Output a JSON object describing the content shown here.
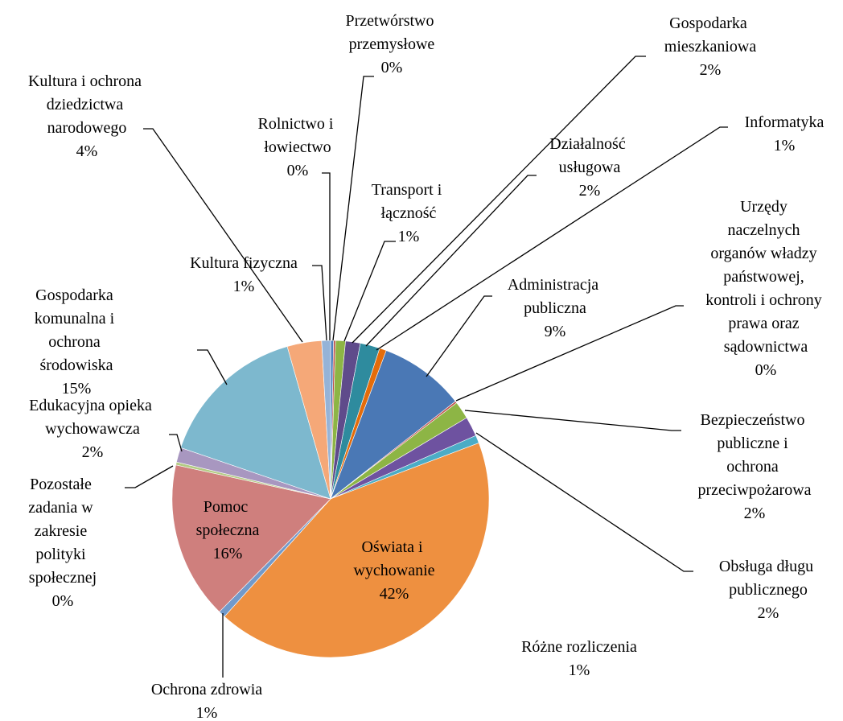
{
  "chart_data": {
    "type": "pie",
    "categories": [
      "Rolnictwo i łowiectwo",
      "Przetwórstwo przemysłowe",
      "Transport i łączność",
      "Gospodarka mieszkaniowa",
      "Działalność usługowa",
      "Informatyka",
      "Administracja publiczna",
      "Urzędy naczelnych organów władzy państwowej, kontroli i ochrony prawa oraz sądownictwa",
      "Bezpieczeństwo publiczne i ochrona przeciwpożarowa",
      "Obsługa długu publicznego",
      "Różne rozliczenia",
      "Oświata i wychowanie",
      "Ochrona zdrowia",
      "Pomoc społeczna",
      "Pozostałe zadania w zakresie polityki społecznej",
      "Edukacyjna opieka wychowawcza",
      "Gospodarka komunalna i ochrona środowiska",
      "Kultura i ochrona dziedzictwa narodowego",
      "Kultura fizyczna"
    ],
    "values": [
      0.3,
      0.2,
      1.0,
      1.5,
      2.0,
      0.7,
      8.7,
      0.2,
      1.8,
      2.0,
      0.8,
      42.3,
      0.7,
      16.0,
      0.3,
      1.5,
      15.3,
      3.5,
      0.9
    ],
    "value_labels": [
      "0%",
      "0%",
      "1%",
      "2%",
      "2%",
      "1%",
      "9%",
      "0%",
      "2%",
      "2%",
      "1%",
      "42%",
      "1%",
      "16%",
      "0%",
      "2%",
      "15%",
      "4%",
      "1%"
    ],
    "colors": [
      "#4F81BD",
      "#C0504D",
      "#8DB545",
      "#5F4B8B",
      "#2E8B9E",
      "#E46C0A",
      "#4A78B5",
      "#C0504D",
      "#8DB545",
      "#6E52A0",
      "#4BACC6",
      "#EE9040",
      "#729ACA",
      "#CF7F7D",
      "#B3CB84",
      "#A897C0",
      "#7DB8CE",
      "#F5A878",
      "#95B3D7"
    ]
  }
}
